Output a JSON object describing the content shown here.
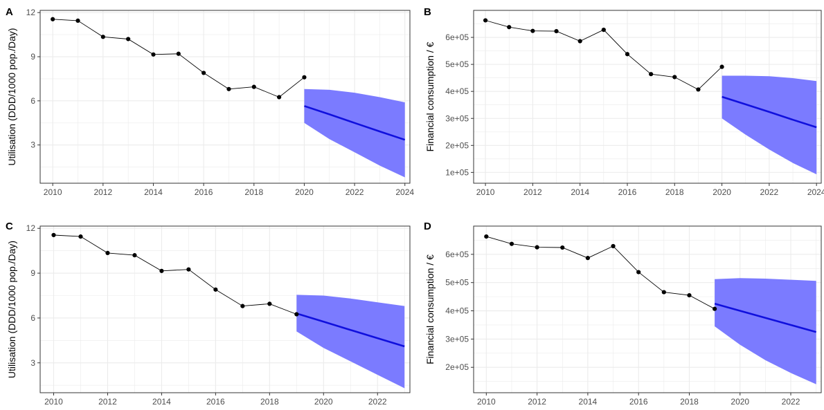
{
  "colors": {
    "observed_line": "#000000",
    "observed_point": "#000000",
    "forecast_line": "#1010dd",
    "forecast_band": "#7b7bff",
    "grid": "#ebebeb",
    "panel_border": "#333333"
  },
  "chart_data": [
    {
      "type": "line",
      "panel_tag": "A",
      "xlabel": "",
      "ylabel": "Utilisation (DDD/1000 pop./Day)",
      "xlim": [
        2009.5,
        2024.2
      ],
      "ylim": [
        0.4,
        12.15
      ],
      "x_ticks": [
        "2010",
        "2012",
        "2014",
        "2016",
        "2018",
        "2020",
        "2022",
        "2024"
      ],
      "y_ticks": [
        "3",
        "6",
        "9",
        "12"
      ],
      "y_tick_values": [
        3,
        6,
        9,
        12
      ],
      "grid": true,
      "observed": {
        "x": [
          2010,
          2011,
          2012,
          2013,
          2014,
          2015,
          2016,
          2017,
          2018,
          2019,
          2020
        ],
        "y": [
          11.55,
          11.45,
          10.35,
          10.2,
          9.15,
          9.2,
          7.9,
          6.8,
          6.95,
          6.25,
          7.6
        ]
      },
      "forecast": {
        "x": [
          2020,
          2021,
          2022,
          2023,
          2024
        ],
        "y": [
          5.65,
          5.08,
          4.5,
          3.92,
          3.35
        ],
        "lower": [
          4.5,
          3.4,
          2.5,
          1.6,
          0.8
        ],
        "upper": [
          6.8,
          6.75,
          6.55,
          6.25,
          5.9
        ]
      }
    },
    {
      "type": "line",
      "panel_tag": "B",
      "xlabel": "",
      "ylabel": "Financial consumption / €",
      "xlim": [
        2009.5,
        2024.2
      ],
      "ylim": [
        60000,
        700000
      ],
      "x_ticks": [
        "2010",
        "2012",
        "2014",
        "2016",
        "2018",
        "2020",
        "2022",
        "2024"
      ],
      "y_ticks": [
        "1e+05",
        "2e+05",
        "3e+05",
        "4e+05",
        "5e+05",
        "6e+05"
      ],
      "y_tick_values": [
        100000,
        200000,
        300000,
        400000,
        500000,
        600000
      ],
      "grid": true,
      "observed": {
        "x": [
          2010,
          2011,
          2012,
          2013,
          2014,
          2015,
          2016,
          2017,
          2018,
          2019,
          2020
        ],
        "y": [
          663000,
          638000,
          624000,
          623000,
          586000,
          628000,
          538000,
          464000,
          453000,
          407000,
          491000
        ]
      },
      "forecast": {
        "x": [
          2020,
          2021,
          2022,
          2023,
          2024
        ],
        "y": [
          380000,
          352000,
          324000,
          295000,
          267000
        ],
        "lower": [
          300000,
          240000,
          185000,
          135000,
          93000
        ],
        "upper": [
          458000,
          458000,
          456000,
          449000,
          438000
        ]
      }
    },
    {
      "type": "line",
      "panel_tag": "C",
      "xlabel": "",
      "ylabel": "Utilisation (DDD/1000 pop./Day)",
      "xlim": [
        2009.5,
        2023.2
      ],
      "ylim": [
        1.0,
        12.15
      ],
      "x_ticks": [
        "2010",
        "2012",
        "2014",
        "2016",
        "2018",
        "2020",
        "2022"
      ],
      "y_ticks": [
        "3",
        "6",
        "9",
        "12"
      ],
      "y_tick_values": [
        3,
        6,
        9,
        12
      ],
      "grid": true,
      "observed": {
        "x": [
          2010,
          2011,
          2012,
          2013,
          2014,
          2015,
          2016,
          2017,
          2018,
          2019
        ],
        "y": [
          11.55,
          11.45,
          10.35,
          10.2,
          9.15,
          9.25,
          7.9,
          6.8,
          6.95,
          6.25
        ]
      },
      "forecast": {
        "x": [
          2019,
          2020,
          2021,
          2022,
          2023
        ],
        "y": [
          6.3,
          5.75,
          5.2,
          4.65,
          4.1
        ],
        "lower": [
          5.1,
          4.0,
          3.1,
          2.2,
          1.3
        ],
        "upper": [
          7.55,
          7.5,
          7.3,
          7.05,
          6.8
        ]
      }
    },
    {
      "type": "line",
      "panel_tag": "D",
      "xlabel": "",
      "ylabel": "Financial consumption / €",
      "xlim": [
        2009.5,
        2023.2
      ],
      "ylim": [
        110000,
        700000
      ],
      "x_ticks": [
        "2010",
        "2012",
        "2014",
        "2016",
        "2018",
        "2020",
        "2022"
      ],
      "y_ticks": [
        "2e+05",
        "3e+05",
        "4e+05",
        "5e+05",
        "6e+05"
      ],
      "y_tick_values": [
        200000,
        300000,
        400000,
        500000,
        600000
      ],
      "grid": true,
      "observed": {
        "x": [
          2010,
          2011,
          2012,
          2013,
          2014,
          2015,
          2016,
          2017,
          2018,
          2019
        ],
        "y": [
          663000,
          637000,
          625000,
          624000,
          587000,
          629000,
          537000,
          466000,
          455000,
          407000
        ]
      },
      "forecast": {
        "x": [
          2019,
          2020,
          2021,
          2022,
          2023
        ],
        "y": [
          425000,
          400000,
          375000,
          350000,
          325000
        ],
        "lower": [
          345000,
          280000,
          225000,
          180000,
          140000
        ],
        "upper": [
          512000,
          516000,
          514000,
          510000,
          506000
        ]
      }
    }
  ]
}
